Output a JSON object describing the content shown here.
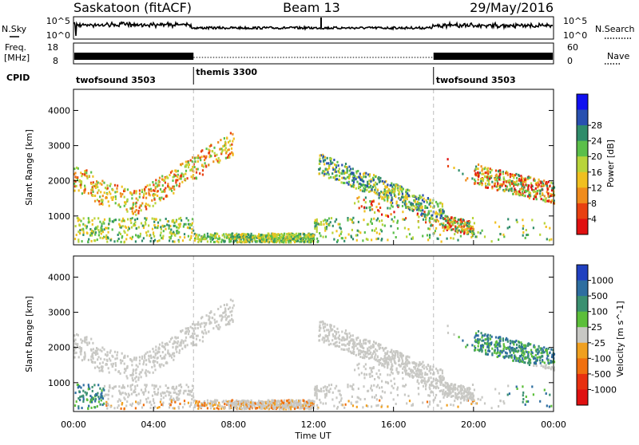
{
  "header": {
    "station": "Saskatoon (fitACF)",
    "beam": "Beam 13",
    "date": "29/May/2016"
  },
  "noise_panel": {
    "left_label": "N.Sky",
    "right_label": "N.Search",
    "left_ticks": [
      "10^5",
      "10^0"
    ],
    "right_ticks": [
      "10^5",
      "10^0"
    ]
  },
  "freq_panel": {
    "left_label_1": "Freq.",
    "left_label_2": "[MHz]",
    "right_label": "Nave",
    "left_ticks": [
      "18",
      "8"
    ],
    "right_ticks": [
      "60",
      "0"
    ]
  },
  "cpid": {
    "label": "CPID",
    "segments": [
      {
        "name": "twofsound 3503",
        "start_hour": 0,
        "end_hour": 6
      },
      {
        "name": "themis 3300",
        "start_hour": 6,
        "end_hour": 18
      },
      {
        "name": "twofsound 3503",
        "start_hour": 18,
        "end_hour": 24
      }
    ]
  },
  "chart_data": [
    {
      "type": "heatmap",
      "title": "",
      "ylabel": "Slant Range [km]",
      "xlabel": "",
      "xlim": [
        0,
        24
      ],
      "ylim": [
        180,
        4600
      ],
      "yticks": [
        "1000",
        "2000",
        "3000",
        "4000"
      ],
      "colorbar_label": "Power [dB]",
      "colorbar_ticks": [
        "4",
        "8",
        "12",
        "16",
        "20",
        "24",
        "28"
      ],
      "colorbar_colors": [
        "#1010f0",
        "#2850b0",
        "#2f8c6a",
        "#5bbf4a",
        "#b8d43a",
        "#f0c020",
        "#f08c1c",
        "#e84010",
        "#e01010"
      ],
      "scatter_bands": [
        {
          "range_km": [
            1300,
            2500
          ],
          "hours": [
            0,
            3.2
          ]
        },
        {
          "range_km": [
            1400,
            3200
          ],
          "hours": [
            3.2,
            8.0
          ]
        },
        {
          "range_km": [
            800,
            2500
          ],
          "hours": [
            12.2,
            18.5
          ]
        },
        {
          "range_km": [
            600,
            1600
          ],
          "hours": [
            14,
            20
          ]
        },
        {
          "range_km": [
            1300,
            2600
          ],
          "hours": [
            19,
            24
          ]
        },
        {
          "range_km": [
            200,
            900
          ],
          "hours": [
            0,
            24
          ]
        }
      ]
    },
    {
      "type": "heatmap",
      "title": "",
      "ylabel": "Slant Range [km]",
      "xlabel": "Time UT",
      "xlim": [
        0,
        24
      ],
      "ylim": [
        180,
        4600
      ],
      "yticks": [
        "1000",
        "2000",
        "3000",
        "4000"
      ],
      "xticks": [
        "00:00",
        "04:00",
        "08:00",
        "12:00",
        "16:00",
        "20:00",
        "00:00"
      ],
      "colorbar_label": "Velocity [m s^-1]",
      "colorbar_ticks": [
        "1000",
        "500",
        "100",
        "25",
        "-25",
        "-100",
        "-500",
        "-1000"
      ],
      "colorbar_colors": [
        "#2040c0",
        "#2e6ea0",
        "#3a9070",
        "#5cbf3a",
        "#c8c8c4",
        "#f0a020",
        "#f07010",
        "#e83010",
        "#e01010"
      ],
      "ground_scatter_color": "#c8c8c4"
    }
  ]
}
